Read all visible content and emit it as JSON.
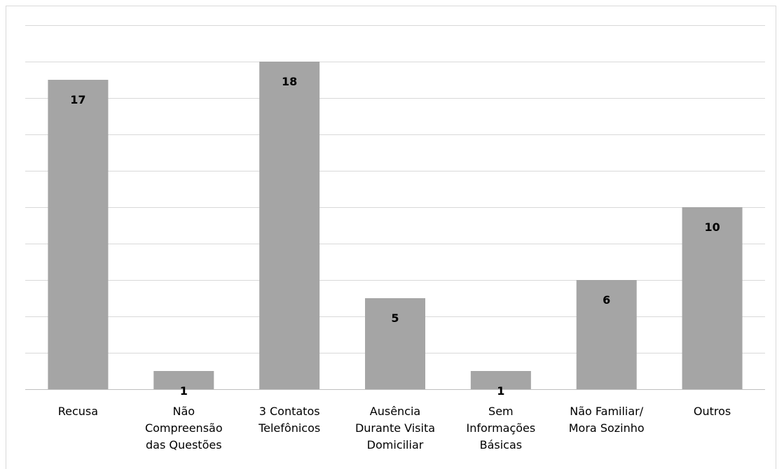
{
  "chart_data": {
    "type": "bar",
    "categories": [
      [
        "Recusa"
      ],
      [
        "Não",
        "Compreensão",
        "das Questões"
      ],
      [
        "3 Contatos",
        "Telefônicos"
      ],
      [
        "Ausência",
        "Durante Visita",
        "Domiciliar"
      ],
      [
        "Sem",
        "Informações",
        "Básicas"
      ],
      [
        "Não Familiar/",
        "Mora Sozinho"
      ],
      [
        "Outros"
      ]
    ],
    "values": [
      17,
      1,
      18,
      5,
      1,
      6,
      10
    ],
    "data_labels": [
      "17",
      "1",
      "18",
      "5",
      "1",
      "6",
      "10"
    ],
    "ylim": [
      0,
      20
    ],
    "y_gridline_step": 2,
    "grid": true,
    "colors": {
      "bar": "#a5a5a5",
      "grid": "#d9d9d9",
      "axis": "#bfbfbf"
    }
  }
}
